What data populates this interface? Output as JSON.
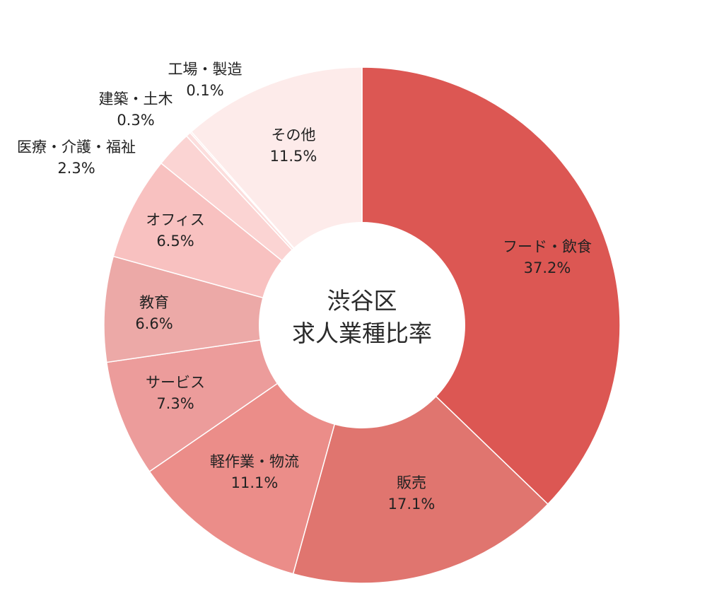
{
  "chart_data": {
    "type": "pie",
    "center_title": [
      "渋谷区",
      "求人業種比率"
    ],
    "slices": [
      {
        "label": "フード・飲食",
        "value_label": "37.2%",
        "value": 37.2,
        "color": "#dc5753"
      },
      {
        "label": "販売",
        "value_label": "17.1%",
        "value": 17.1,
        "color": "#e0756f"
      },
      {
        "label": "軽作業・物流",
        "value_label": "11.1%",
        "value": 11.1,
        "color": "#eb8d89"
      },
      {
        "label": "サービス",
        "value_label": "7.3%",
        "value": 7.3,
        "color": "#ec9c9b"
      },
      {
        "label": "教育",
        "value_label": "6.6%",
        "value": 6.6,
        "color": "#eca9a7"
      },
      {
        "label": "オフィス",
        "value_label": "6.5%",
        "value": 6.5,
        "color": "#f8c1c0"
      },
      {
        "label": "医療・介護・福祉",
        "value_label": "2.3%",
        "value": 2.3,
        "color": "#fbd4d3"
      },
      {
        "label": "建築・土木",
        "value_label": "0.3%",
        "value": 0.3,
        "color": "#fcdedd"
      },
      {
        "label": "工場・製造",
        "value_label": "0.1%",
        "value": 0.1,
        "color": "#fde6e5"
      },
      {
        "label": "その他",
        "value_label": "11.5%",
        "value": 11.5,
        "color": "#fdebea"
      }
    ]
  }
}
